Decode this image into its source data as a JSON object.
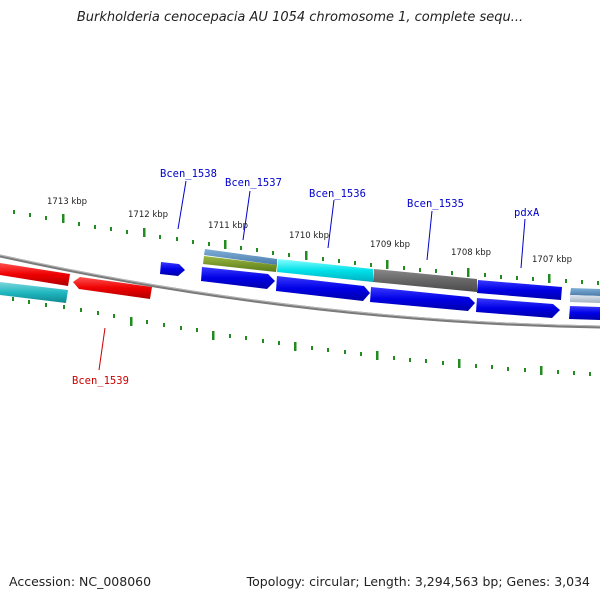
{
  "title": "Burkholderia cenocepacia AU 1054 chromosome 1, complete sequ...",
  "footer": {
    "accession": "Accession: NC_008060",
    "summary": "Topology: circular; Length: 3,294,563 bp; Genes: 3,034"
  },
  "colors": {
    "forward_cds": "#0000ee",
    "reverse_cds": "#ee0000",
    "tick": "#228b22",
    "backbone": "#808080",
    "gene_label_forward": "#0000cc",
    "gene_label_reverse": "#cc0000"
  },
  "kbp_labels": [
    "1713 kbp",
    "1712 kbp",
    "1711 kbp",
    "1710 kbp",
    "1709 kbp",
    "1708 kbp",
    "1707 kbp"
  ],
  "genes": {
    "bcen_1539": "Bcen_1539",
    "bcen_1538": "Bcen_1538",
    "bcen_1537": "Bcen_1537",
    "bcen_1536": "Bcen_1536",
    "bcen_1535": "Bcen_1535",
    "pdxa": "pdxA"
  }
}
